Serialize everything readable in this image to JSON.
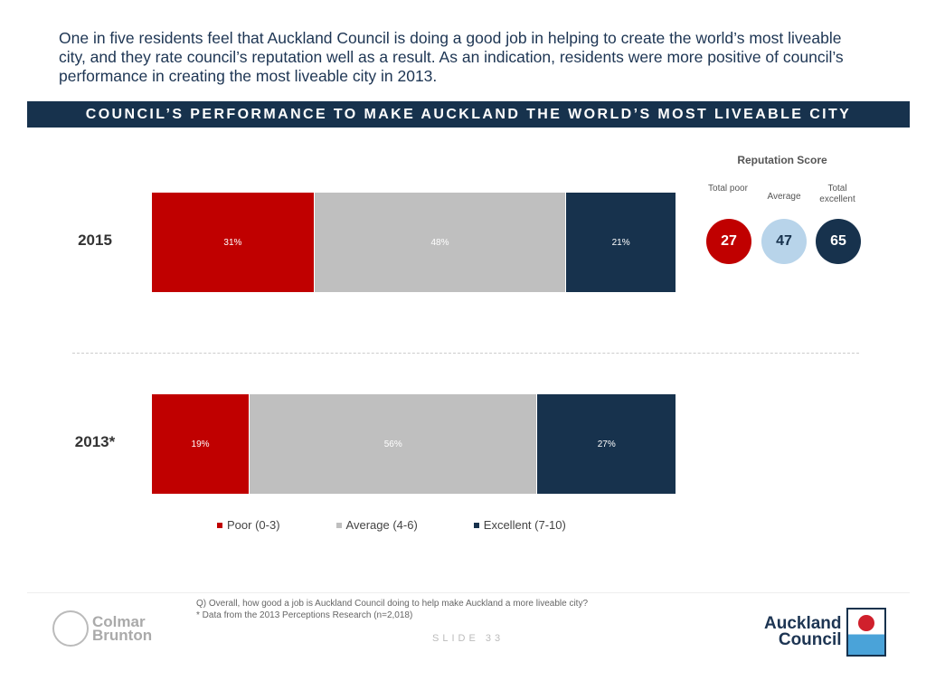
{
  "intro": "One in five residents feel that Auckland Council is doing a good job in helping to create the world’s most liveable city, and they rate council’s reputation well as a result. As an indication, residents were more positive of council’s performance in creating the most liveable city in 2013.",
  "banner": "COUNCIL’S PERFORMANCE TO MAKE AUCKLAND THE WORLD’S MOST LIVEABLE CITY",
  "colors": {
    "poor": "#c00000",
    "average": "#bfbfbf",
    "excellent": "#17324d",
    "average_circle": "#b8d4ea"
  },
  "chart_data": {
    "type": "bar",
    "orientation": "horizontal",
    "stacked": true,
    "categories": [
      "2015",
      "2013*"
    ],
    "series": [
      {
        "name": "Poor (0-3)",
        "values": [
          31,
          19
        ],
        "labels": [
          "31%",
          "19%"
        ]
      },
      {
        "name": "Average (4-6)",
        "values": [
          48,
          56
        ],
        "labels": [
          "48%",
          "56%"
        ]
      },
      {
        "name": "Excellent (7-10)",
        "values": [
          21,
          27
        ],
        "labels": [
          "21%",
          "27%"
        ]
      }
    ],
    "legend": "bottom"
  },
  "reputation": {
    "title": "Reputation Score",
    "items": [
      {
        "label": "Total poor",
        "value": "27"
      },
      {
        "label": "Average",
        "value": "47"
      },
      {
        "label": "Total excellent",
        "value": "65"
      }
    ]
  },
  "footer": {
    "question": "Q) Overall, how good a job is Auckland Council doing to help make Auckland a more liveable city?",
    "note": "* Data from the 2013 Perceptions Research (n=2,018)",
    "slide": "SLIDE 33",
    "logo_left": "Colmar Brunton",
    "logo_right": "Auckland Council"
  }
}
